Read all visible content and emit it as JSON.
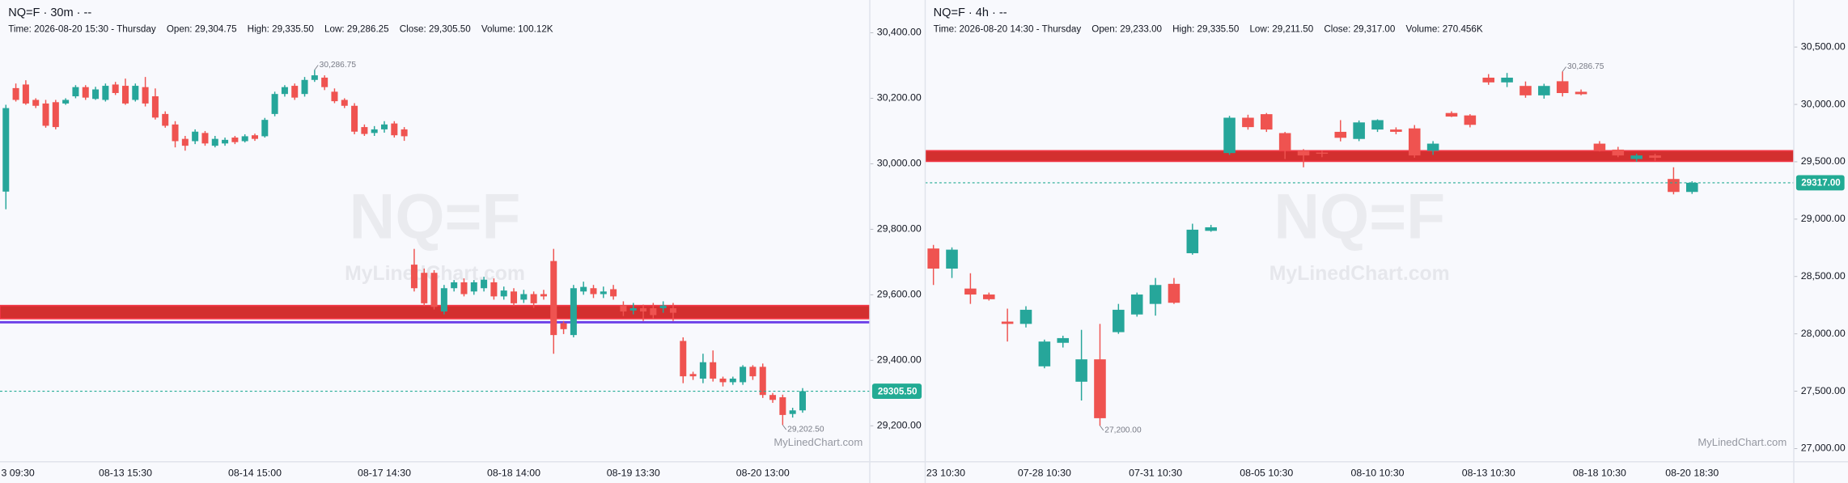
{
  "chart_data": [
    {
      "type": "candlestick",
      "title": "NQ=F · 30m · --",
      "info": [
        "Time: 2026-08-20 15:30 - Thursday",
        "Open: 29,304.75",
        "High: 29,335.50",
        "Low: 29,286.25",
        "Close: 29,305.50",
        "Volume: 100.12K"
      ],
      "watermark": "NQ=F",
      "watermark_site": "MyLinedChart.com",
      "brand": "MyLinedChart.com",
      "up_color": "#26a69a",
      "down_color": "#ef5350",
      "ylim": [
        29090,
        30500
      ],
      "yticks": [
        {
          "value": 29200,
          "label": "29,200.00"
        },
        {
          "value": 29400,
          "label": "29,400.00"
        },
        {
          "value": 29600,
          "label": "29,600.00"
        },
        {
          "value": 29800,
          "label": "29,800.00"
        },
        {
          "value": 30000,
          "label": "30,000.00"
        },
        {
          "value": 30200,
          "label": "30,200.00"
        },
        {
          "value": 30400,
          "label": "30,400.00"
        }
      ],
      "categories": [
        null,
        "3 09:30",
        null,
        null,
        null,
        null,
        null,
        null,
        null,
        null,
        null,
        null,
        "08-13 15:30",
        null,
        null,
        null,
        null,
        null,
        null,
        null,
        null,
        null,
        null,
        null,
        null,
        "08-14 15:00",
        null,
        null,
        null,
        null,
        null,
        null,
        null,
        null,
        null,
        null,
        null,
        null,
        "08-17 14:30",
        null,
        null,
        null,
        null,
        null,
        null,
        null,
        null,
        null,
        null,
        null,
        null,
        "08-18 14:00",
        null,
        null,
        null,
        null,
        null,
        null,
        null,
        null,
        null,
        null,
        null,
        "08-19 13:30",
        null,
        null,
        null,
        null,
        null,
        null,
        null,
        null,
        null,
        null,
        null,
        null,
        "08-20 13:00",
        null,
        null,
        null,
        null
      ],
      "open": [
        29915,
        30231,
        30242,
        30195,
        30184,
        30188,
        30184,
        30206,
        30234,
        30198,
        30195,
        30242,
        30238,
        30195,
        30234,
        30206,
        30152,
        30120,
        30076,
        30069,
        30094,
        30055,
        30062,
        30080,
        30069,
        30087,
        30084,
        30152,
        30213,
        30238,
        30213,
        30256,
        30263,
        30220,
        30195,
        30177,
        30112,
        30094,
        30105,
        30123,
        30105,
        29692,
        29667,
        29667,
        29549,
        29620,
        29638,
        29610,
        29620,
        29638,
        29595,
        29610,
        29585,
        29602,
        29602,
        29703,
        29513,
        29477,
        29610,
        29620,
        29602,
        29617,
        29567,
        29552,
        29559,
        29559,
        29559,
        29559,
        29459,
        29358,
        29344,
        29394,
        29344,
        29333,
        29333,
        29380,
        29380,
        29294,
        29287,
        29236,
        29247
      ],
      "high": [
        30180,
        30245,
        30255,
        30200,
        30195,
        30195,
        30200,
        30240,
        30240,
        30235,
        30245,
        30250,
        30260,
        30245,
        30265,
        30230,
        30160,
        30130,
        30085,
        30105,
        30100,
        30085,
        30080,
        30085,
        30090,
        30092,
        30140,
        30220,
        30240,
        30245,
        30265,
        30286.75,
        30270,
        30230,
        30200,
        30185,
        30120,
        30115,
        30130,
        30130,
        30112,
        29740,
        29680,
        29675,
        29630,
        29645,
        29650,
        29645,
        29655,
        29650,
        29625,
        29620,
        29615,
        29610,
        29615,
        29740,
        29520,
        29630,
        29640,
        29630,
        29625,
        29630,
        29580,
        29575,
        29570,
        29575,
        29580,
        29575,
        29470,
        29365,
        29420,
        29430,
        29350,
        29350,
        29385,
        29385,
        29390,
        29300,
        29295,
        29255,
        29315
      ],
      "low": [
        29861,
        30190,
        30180,
        30170,
        30110,
        30105,
        30180,
        30200,
        30195,
        30195,
        30190,
        30210,
        30180,
        30190,
        30175,
        30135,
        30110,
        30050,
        30040,
        30060,
        30055,
        30050,
        30055,
        30060,
        30065,
        30070,
        30080,
        30145,
        30205,
        30195,
        30205,
        30250,
        30225,
        30185,
        30170,
        30090,
        30085,
        30085,
        30095,
        30080,
        30070,
        29610,
        29565,
        29555,
        29540,
        29610,
        29595,
        29600,
        29610,
        29585,
        29585,
        29565,
        29575,
        29560,
        29585,
        29420,
        29480,
        29470,
        29600,
        29590,
        29590,
        29585,
        29535,
        29540,
        29520,
        29525,
        29545,
        29520,
        29330,
        29340,
        29330,
        29335,
        29320,
        29325,
        29325,
        29340,
        29285,
        29270,
        29202.5,
        29225,
        29240
      ],
      "close": [
        30170,
        30195,
        30184,
        30177,
        30116,
        30112,
        30195,
        30234,
        30202,
        30227,
        30238,
        30216,
        30184,
        30238,
        30184,
        30141,
        30116,
        30069,
        30055,
        30098,
        30062,
        30076,
        30073,
        30066,
        30084,
        30076,
        30134,
        30213,
        30234,
        30202,
        30256,
        30270,
        30234,
        30191,
        30177,
        30098,
        30091,
        30105,
        30120,
        30087,
        30084,
        29620,
        29574,
        29563,
        29620,
        29638,
        29602,
        29638,
        29646,
        29595,
        29613,
        29574,
        29602,
        29574,
        29595,
        29477,
        29495,
        29620,
        29624,
        29602,
        29610,
        29595,
        29549,
        29559,
        29549,
        29538,
        29567,
        29545,
        29351,
        29351,
        29394,
        29344,
        29333,
        29344,
        29380,
        29351,
        29294,
        29279,
        29233,
        29247,
        29305.5
      ],
      "bands": [
        {
          "from": 29567,
          "to": 29527,
          "color": "#d32f2f"
        }
      ],
      "lines": [
        {
          "value": 29516,
          "color": "#6a3de8"
        }
      ],
      "last_price": {
        "value": 29305.5,
        "label": "29305.50",
        "color": "#22ab94"
      },
      "annotations": [
        {
          "value": 30286.75,
          "label": "30,286.75"
        },
        {
          "value": 29202.5,
          "label": "29,202.50"
        }
      ]
    },
    {
      "type": "candlestick",
      "title": "NQ=F · 4h · --",
      "info": [
        "Time: 2026-08-20 14:30 - Thursday",
        "Open: 29,233.00",
        "High: 29,335.50",
        "Low: 29,211.50",
        "Close: 29,317.00",
        "Volume: 270.456K"
      ],
      "watermark": "NQ=F",
      "watermark_site": "MyLinedChart.com",
      "brand": "MyLinedChart.com",
      "up_color": "#26a69a",
      "down_color": "#ef5350",
      "ylim": [
        26885,
        30910
      ],
      "yticks": [
        {
          "value": 27000,
          "label": "27,000.00"
        },
        {
          "value": 27500,
          "label": "27,500.00"
        },
        {
          "value": 28000,
          "label": "28,000.00"
        },
        {
          "value": 28500,
          "label": "28,500.00"
        },
        {
          "value": 29000,
          "label": "29,000.00"
        },
        {
          "value": 29500,
          "label": "29,500.00"
        },
        {
          "value": 30000,
          "label": "30,000.00"
        },
        {
          "value": 30500,
          "label": "30,500.00"
        }
      ],
      "categories": [
        "23 10:30",
        null,
        null,
        null,
        null,
        null,
        "07-28 10:30",
        null,
        null,
        null,
        null,
        null,
        "07-31 10:30",
        null,
        null,
        null,
        null,
        null,
        "08-05 10:30",
        null,
        null,
        null,
        null,
        null,
        "08-10 10:30",
        null,
        null,
        null,
        null,
        null,
        "08-13 10:30",
        null,
        null,
        null,
        null,
        null,
        "08-18 10:30",
        null,
        null,
        null,
        null,
        "08-20 18:30"
      ],
      "open": [
        28744,
        28569,
        28395,
        28343,
        28107,
        28087,
        27717,
        27922,
        27583,
        27778,
        28015,
        28169,
        28261,
        28436,
        28703,
        28898,
        29576,
        29884,
        29915,
        29750,
        29596,
        29580,
        29761,
        29699,
        29781,
        29781,
        29791,
        29596,
        29925,
        29904,
        30233,
        30192,
        30161,
        30079,
        30202,
        30110,
        29658,
        29606,
        29524,
        29555,
        29350,
        29237
      ],
      "high": [
        28775,
        28754,
        28528,
        28360,
        28220,
        28241,
        27950,
        27984,
        28035,
        28087,
        28261,
        28360,
        28487,
        28487,
        28960,
        28950,
        29900,
        29910,
        29925,
        29760,
        29610,
        29600,
        29863,
        29860,
        29870,
        29800,
        29820,
        29680,
        29940,
        29915,
        30264,
        30274,
        30200,
        30180,
        30286.75,
        30130,
        29680,
        29630,
        29570,
        29570,
        29452,
        29330
      ],
      "low": [
        28426,
        28487,
        28261,
        28290,
        27933,
        28056,
        27700,
        27881,
        27419,
        27200,
        28000,
        28150,
        28159,
        28261,
        28690,
        28890,
        29560,
        29780,
        29760,
        29524,
        29452,
        29540,
        29678,
        29680,
        29760,
        29740,
        29535,
        29560,
        29890,
        29800,
        30171,
        30151,
        30058,
        30050,
        30069,
        30080,
        29590,
        29540,
        29500,
        29510,
        29216,
        29220
      ],
      "close": [
        28569,
        28734,
        28343,
        28302,
        28087,
        28210,
        27933,
        27963,
        27778,
        27265,
        28210,
        28343,
        28426,
        28271,
        28908,
        28929,
        29884,
        29802,
        29781,
        29596,
        29555,
        29576,
        29709,
        29843,
        29863,
        29761,
        29555,
        29658,
        29894,
        29822,
        30192,
        30233,
        30079,
        30161,
        30099,
        30089,
        29596,
        29555,
        29555,
        29535,
        29237,
        29317
      ],
      "bands": [
        {
          "from": 29596,
          "to": 29504,
          "color": "#d32f2f"
        }
      ],
      "lines": [],
      "last_price": {
        "value": 29317,
        "label": "29317.00",
        "color": "#22ab94"
      },
      "annotations": [
        {
          "value": 30286.75,
          "label": "30,286.75"
        },
        {
          "value": 27200,
          "label": "27,200.00"
        }
      ]
    }
  ]
}
